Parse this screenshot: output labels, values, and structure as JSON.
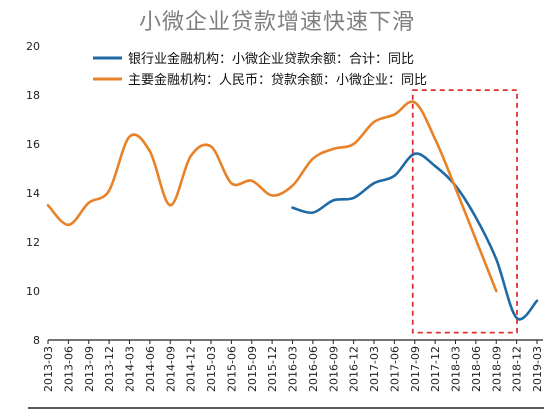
{
  "chart_data": {
    "type": "line",
    "title": "小微企业贷款增速快速下滑",
    "xlabel": "",
    "ylabel": "",
    "ylim": [
      8,
      20
    ],
    "yticks": [
      "8",
      "10",
      "12",
      "14",
      "16",
      "18",
      "20"
    ],
    "x_ticks": [
      "2013-03",
      "2013-06",
      "2013-09",
      "2013-12",
      "2014-03",
      "2014-06",
      "2014-09",
      "2014-12",
      "2015-03",
      "2015-06",
      "2015-09",
      "2015-12",
      "2016-03",
      "2016-06",
      "2016-09",
      "2016-12",
      "2017-03",
      "2017-06",
      "2017-09",
      "2017-12",
      "2018-03",
      "2018-06",
      "2018-09",
      "2018-12",
      "2019-03"
    ],
    "grid": false,
    "legend_position": "top-left",
    "series": [
      {
        "name": "银行业金融机构：小微企业贷款余额：合计：同比",
        "color": "#1f6aa5",
        "points": [
          [
            "2016-03",
            13.4
          ],
          [
            "2016-06",
            13.2
          ],
          [
            "2016-09",
            13.7
          ],
          [
            "2016-12",
            13.8
          ],
          [
            "2017-03",
            14.4
          ],
          [
            "2017-06",
            14.7
          ],
          [
            "2017-09",
            15.6
          ],
          [
            "2017-12",
            15.1
          ],
          [
            "2018-03",
            14.3
          ],
          [
            "2018-06",
            13.0
          ],
          [
            "2018-09",
            11.3
          ],
          [
            "2018-12",
            8.9
          ],
          [
            "2019-03",
            9.6
          ]
        ]
      },
      {
        "name": "主要金融机构：人民币：贷款余额：小微企业：同比",
        "color": "#e8822a",
        "points": [
          [
            "2013-03",
            13.5
          ],
          [
            "2013-06",
            12.7
          ],
          [
            "2013-09",
            13.6
          ],
          [
            "2013-12",
            14.1
          ],
          [
            "2014-03",
            16.3
          ],
          [
            "2014-06",
            15.7
          ],
          [
            "2014-09",
            13.5
          ],
          [
            "2014-12",
            15.5
          ],
          [
            "2015-03",
            15.9
          ],
          [
            "2015-06",
            14.4
          ],
          [
            "2015-09",
            14.5
          ],
          [
            "2015-12",
            13.9
          ],
          [
            "2016-03",
            14.3
          ],
          [
            "2016-06",
            15.4
          ],
          [
            "2016-09",
            15.8
          ],
          [
            "2016-12",
            16.0
          ],
          [
            "2017-03",
            16.9
          ],
          [
            "2017-06",
            17.2
          ],
          [
            "2017-09",
            17.7
          ],
          [
            "2017-12",
            16.2
          ],
          [
            "2018-03",
            14.2
          ],
          [
            "2018-06",
            12.1
          ],
          [
            "2018-09",
            10.0
          ]
        ]
      }
    ],
    "annotations": [
      {
        "type": "dashed-box",
        "color": "#e03030",
        "x_from": "2017-09",
        "x_to": "2019-03",
        "y_from": 8.3,
        "y_to": 18.2
      }
    ]
  }
}
